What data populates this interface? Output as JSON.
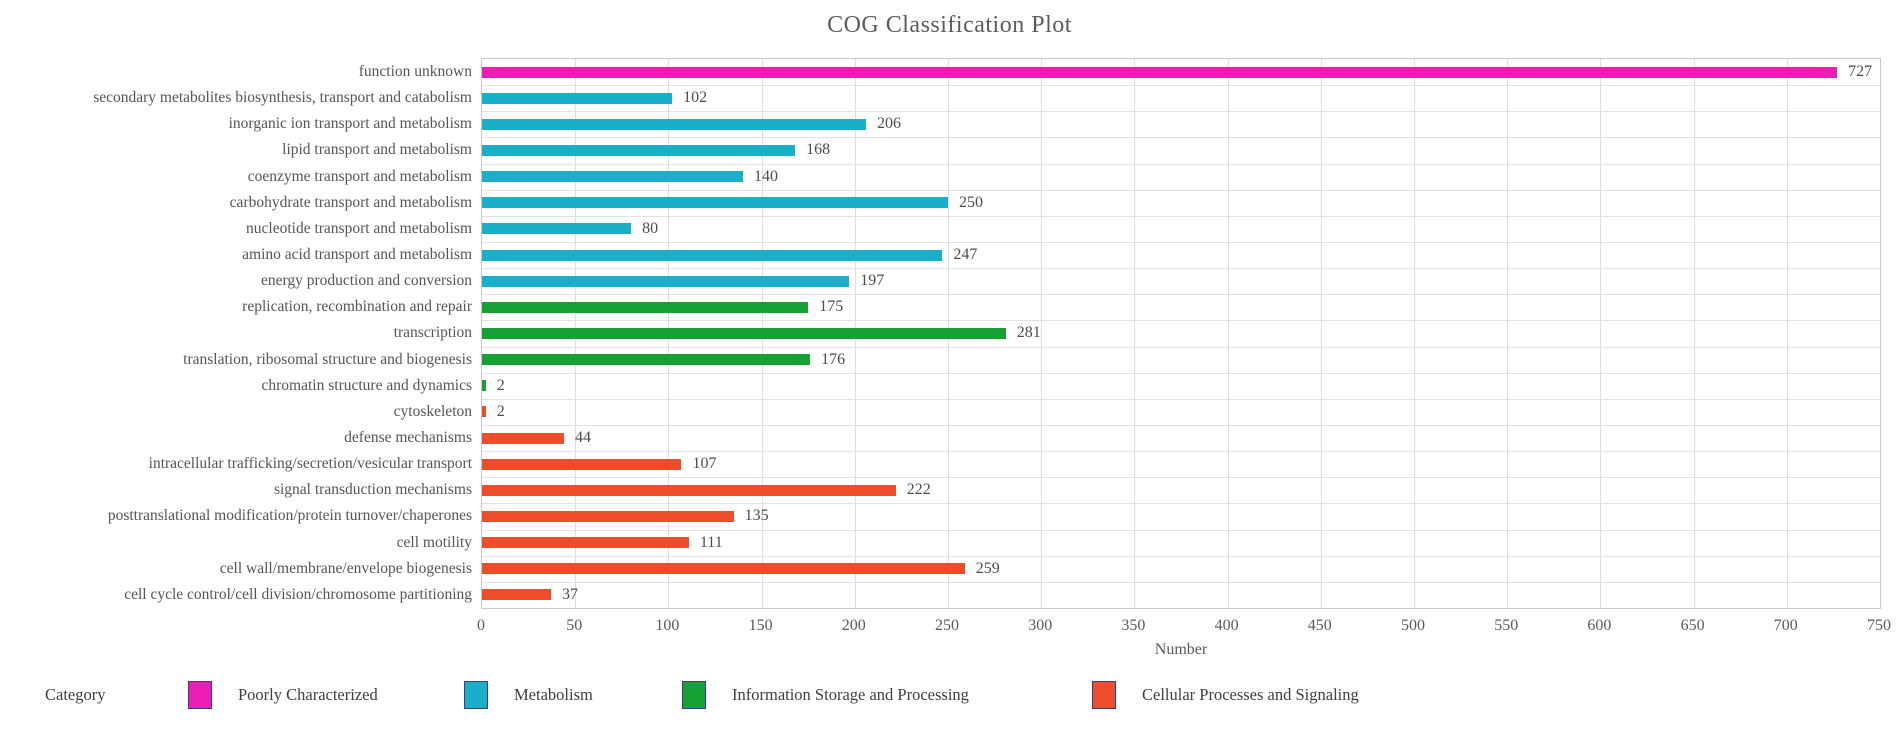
{
  "title": "COG Classification Plot",
  "xlabel": "Number",
  "legend": {
    "title": "Category",
    "items": [
      {
        "label": "Poorly Characterized",
        "color": "#EC1CB5"
      },
      {
        "label": "Metabolism",
        "color": "#1BAEC9"
      },
      {
        "label": "Information Storage and Processing",
        "color": "#16A135"
      },
      {
        "label": "Cellular Processes and Signaling",
        "color": "#EE4D2C"
      }
    ]
  },
  "chart_data": {
    "type": "bar",
    "orientation": "horizontal",
    "title": "COG Classification Plot",
    "xlabel": "Number",
    "ylabel": "",
    "xlim": [
      0,
      750
    ],
    "xtick_step": 50,
    "grid": true,
    "legend_position": "bottom",
    "categories": [
      "function unknown",
      "secondary metabolites biosynthesis, transport and catabolism",
      "inorganic ion transport and metabolism",
      "lipid transport and metabolism",
      "coenzyme transport and metabolism",
      "carbohydrate transport and metabolism",
      "nucleotide transport and metabolism",
      "amino acid transport and metabolism",
      "energy production and conversion",
      "replication, recombination and repair",
      "transcription",
      "translation, ribosomal structure and biogenesis",
      "chromatin structure and dynamics",
      "cytoskeleton",
      "defense mechanisms",
      "intracellular trafficking/secretion/vesicular transport",
      "signal transduction mechanisms",
      "posttranslational modification/protein turnover/chaperones",
      "cell motility",
      "cell wall/membrane/envelope biogenesis",
      "cell cycle control/cell division/chromosome partitioning"
    ],
    "values": [
      727,
      102,
      206,
      168,
      140,
      250,
      80,
      247,
      197,
      175,
      281,
      176,
      2,
      2,
      44,
      107,
      222,
      135,
      111,
      259,
      37
    ],
    "bar_groups": [
      "Poorly Characterized",
      "Metabolism",
      "Metabolism",
      "Metabolism",
      "Metabolism",
      "Metabolism",
      "Metabolism",
      "Metabolism",
      "Metabolism",
      "Information Storage and Processing",
      "Information Storage and Processing",
      "Information Storage and Processing",
      "Information Storage and Processing",
      "Cellular Processes and Signaling",
      "Cellular Processes and Signaling",
      "Cellular Processes and Signaling",
      "Cellular Processes and Signaling",
      "Cellular Processes and Signaling",
      "Cellular Processes and Signaling",
      "Cellular Processes and Signaling",
      "Cellular Processes and Signaling"
    ],
    "group_colors": {
      "Poorly Characterized": "#EC1CB5",
      "Metabolism": "#1BAEC9",
      "Information Storage and Processing": "#16A135",
      "Cellular Processes and Signaling": "#EE4D2C"
    }
  }
}
